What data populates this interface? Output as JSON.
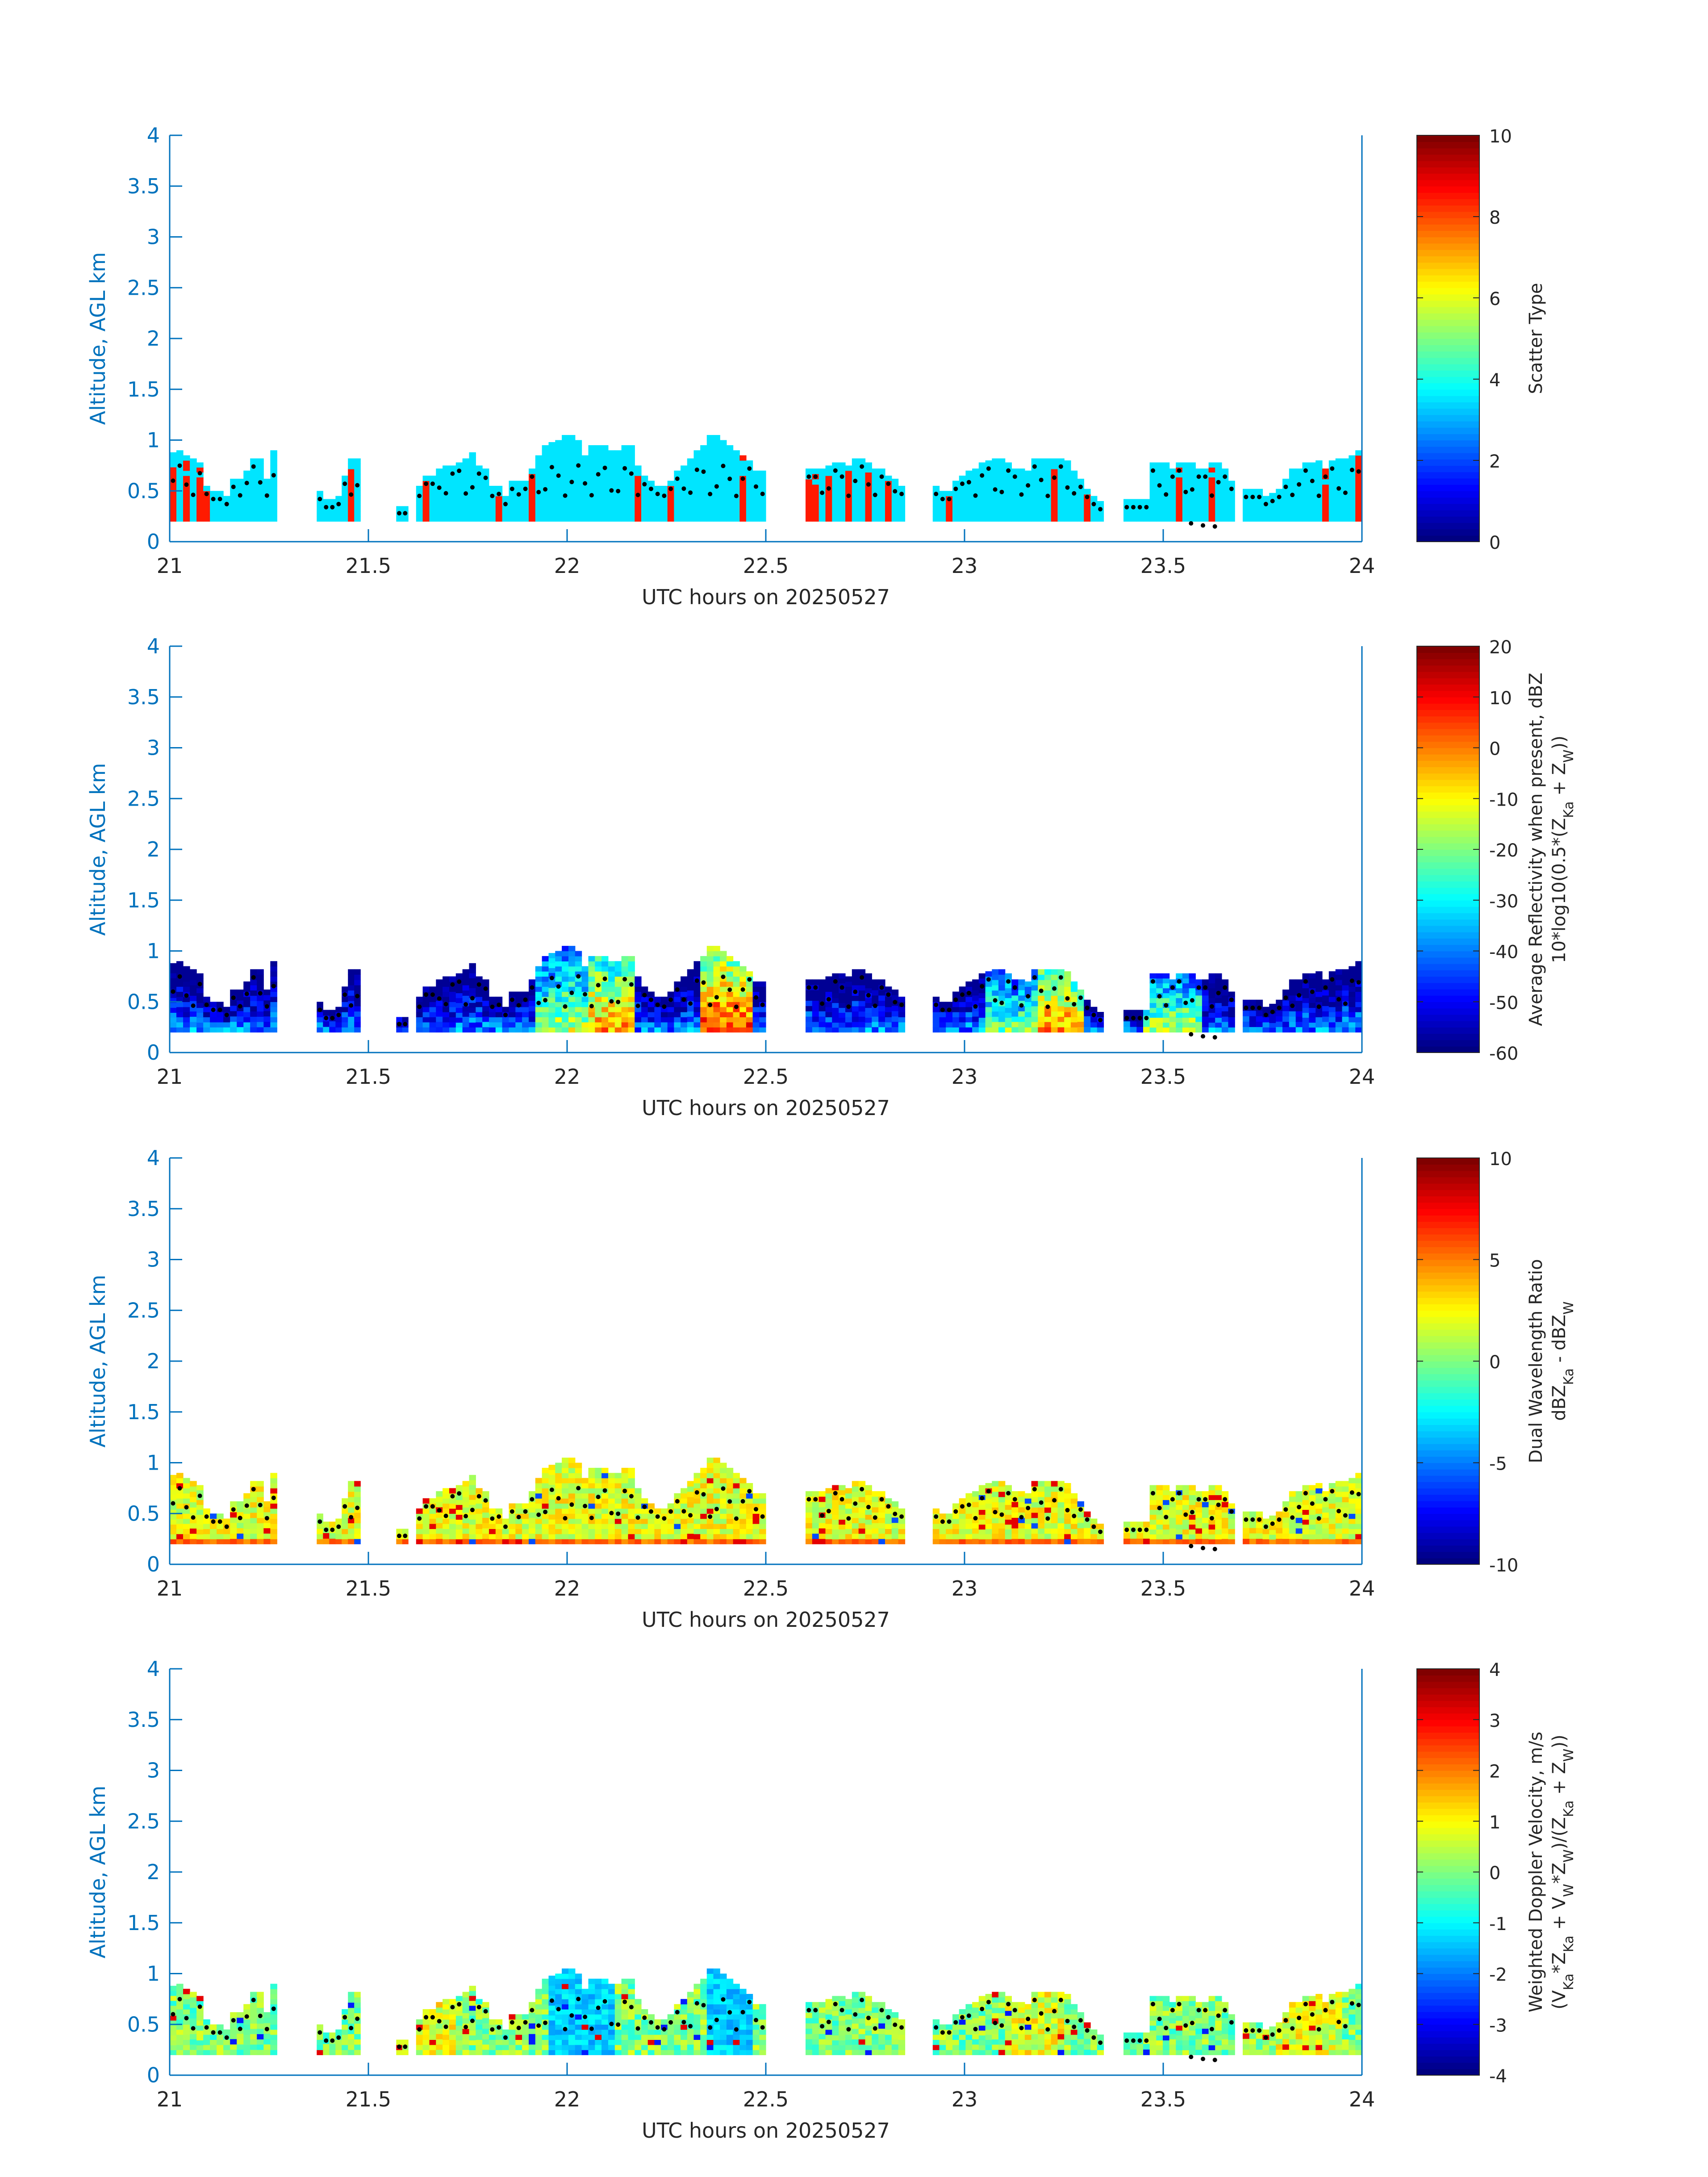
{
  "figure": {
    "axis_color": "#0072BD",
    "dot_color": "#000000"
  },
  "chart_data": [
    {
      "type": "heatmap",
      "title": "",
      "xlabel": "UTC hours on 20250527",
      "ylabel": "Altitude, AGL km",
      "xlim": [
        21,
        24
      ],
      "ylim": [
        0,
        4
      ],
      "xticks": [
        "21",
        "21.5",
        "22",
        "22.5",
        "23",
        "23.5",
        "24"
      ],
      "yticks": [
        "0",
        "0.5",
        "1",
        "1.5",
        "2",
        "2.5",
        "3",
        "3.5",
        "4"
      ],
      "colorbar": {
        "label_lines": [
          "Scatter Type"
        ],
        "colormap": "jet",
        "range": [
          0,
          10
        ],
        "ticks": [
          "0",
          "2",
          "4",
          "6",
          "8",
          "10"
        ]
      },
      "field": "scatter_type",
      "grid": false
    },
    {
      "type": "heatmap",
      "title": "",
      "xlabel": "UTC hours on 20250527",
      "ylabel": "Altitude, AGL km",
      "xlim": [
        21,
        24
      ],
      "ylim": [
        0,
        4
      ],
      "xticks": [
        "21",
        "21.5",
        "22",
        "22.5",
        "23",
        "23.5",
        "24"
      ],
      "yticks": [
        "0",
        "0.5",
        "1",
        "1.5",
        "2",
        "2.5",
        "3",
        "3.5",
        "4"
      ],
      "colorbar": {
        "label_lines": [
          "Average Reflectivity when present, dBZ",
          "10*log10(0.5*(Z_Ka + Z_W))"
        ],
        "colormap": "jet",
        "range": [
          -60,
          20
        ],
        "ticks": [
          "-60",
          "-50",
          "-40",
          "-30",
          "-20",
          "-10",
          "0",
          "10",
          "20"
        ]
      },
      "field": "reflectivity",
      "grid": false
    },
    {
      "type": "heatmap",
      "title": "",
      "xlabel": "UTC hours on 20250527",
      "ylabel": "Altitude, AGL km",
      "xlim": [
        21,
        24
      ],
      "ylim": [
        0,
        4
      ],
      "xticks": [
        "21",
        "21.5",
        "22",
        "22.5",
        "23",
        "23.5",
        "24"
      ],
      "yticks": [
        "0",
        "0.5",
        "1",
        "1.5",
        "2",
        "2.5",
        "3",
        "3.5",
        "4"
      ],
      "colorbar": {
        "label_lines": [
          "Dual Wavelength Ratio",
          "dBZ_Ka - dBZ_W"
        ],
        "colormap": "jet",
        "range": [
          -10,
          10
        ],
        "ticks": [
          "-10",
          "-5",
          "0",
          "5",
          "10"
        ]
      },
      "field": "dwr",
      "grid": false
    },
    {
      "type": "heatmap",
      "title": "",
      "xlabel": "UTC hours on 20250527",
      "ylabel": "Altitude, AGL km",
      "xlim": [
        21,
        24
      ],
      "ylim": [
        0,
        4
      ],
      "xticks": [
        "21",
        "21.5",
        "22",
        "22.5",
        "23",
        "23.5",
        "24"
      ],
      "yticks": [
        "0",
        "0.5",
        "1",
        "1.5",
        "2",
        "2.5",
        "3",
        "3.5",
        "4"
      ],
      "colorbar": {
        "label_lines": [
          "Weighted Doppler Velocity, m/s",
          "(V_Ka*Z_Ka + V_W*Z_W)/(Z_Ka + Z_W))"
        ],
        "colormap": "jet",
        "range": [
          -4,
          4
        ],
        "ticks": [
          "-4",
          "-3",
          "-2",
          "-1",
          "0",
          "1",
          "2",
          "3",
          "4"
        ]
      },
      "field": "velocity",
      "grid": false
    }
  ],
  "cloud_columns": {
    "column_width_hours": 0.0167,
    "base_km": 0.2,
    "segments": [
      {
        "t0": 21.0,
        "t1": 21.27,
        "tops": [
          0.88,
          0.9,
          0.85,
          0.82,
          0.78,
          0.55,
          0.5,
          0.5,
          0.45,
          0.62,
          0.62,
          0.7,
          0.82,
          0.82,
          0.62,
          0.9
        ]
      },
      {
        "t0": 21.37,
        "t1": 21.48,
        "tops": [
          0.5,
          0.42,
          0.42,
          0.45,
          0.65,
          0.82,
          0.82
        ]
      },
      {
        "t0": 21.57,
        "t1": 21.6,
        "tops": [
          0.35,
          0.35
        ]
      },
      {
        "t0": 21.62,
        "t1": 21.87,
        "tops": [
          0.55,
          0.65,
          0.65,
          0.72,
          0.75,
          0.75,
          0.78,
          0.82,
          0.88,
          0.75,
          0.72,
          0.55,
          0.55,
          0.45,
          0.6
        ]
      },
      {
        "t0": 21.87,
        "t1": 22.17,
        "tops": [
          0.6,
          0.6,
          0.72,
          0.85,
          0.95,
          0.98,
          1.0,
          1.05,
          1.05,
          1.0,
          0.85,
          0.95,
          0.95,
          0.95,
          0.9,
          0.9,
          0.95,
          0.95
        ]
      },
      {
        "t0": 22.17,
        "t1": 22.5,
        "tops": [
          0.75,
          0.65,
          0.6,
          0.55,
          0.55,
          0.6,
          0.7,
          0.75,
          0.82,
          0.9,
          0.95,
          1.05,
          1.05,
          1.0,
          0.95,
          0.9,
          0.85,
          0.8,
          0.7,
          0.7
        ]
      },
      {
        "t0": 22.6,
        "t1": 22.85,
        "tops": [
          0.72,
          0.72,
          0.72,
          0.75,
          0.78,
          0.78,
          0.75,
          0.82,
          0.82,
          0.78,
          0.72,
          0.72,
          0.65,
          0.62,
          0.55
        ]
      },
      {
        "t0": 22.92,
        "t1": 23.35,
        "tops": [
          0.55,
          0.5,
          0.5,
          0.6,
          0.65,
          0.7,
          0.72,
          0.78,
          0.8,
          0.82,
          0.82,
          0.78,
          0.72,
          0.72,
          0.7,
          0.82,
          0.82,
          0.82,
          0.82,
          0.82,
          0.8,
          0.7,
          0.62,
          0.52,
          0.45,
          0.4
        ]
      },
      {
        "t0": 23.4,
        "t1": 23.68,
        "tops": [
          0.42,
          0.42,
          0.42,
          0.42,
          0.78,
          0.78,
          0.78,
          0.72,
          0.78,
          0.78,
          0.78,
          0.72,
          0.72,
          0.78,
          0.78,
          0.72,
          0.6
        ]
      },
      {
        "t0": 23.7,
        "t1": 24.0,
        "tops": [
          0.52,
          0.52,
          0.52,
          0.45,
          0.48,
          0.52,
          0.62,
          0.72,
          0.72,
          0.78,
          0.78,
          0.8,
          0.72,
          0.8,
          0.82,
          0.82,
          0.85,
          0.9
        ]
      }
    ]
  }
}
